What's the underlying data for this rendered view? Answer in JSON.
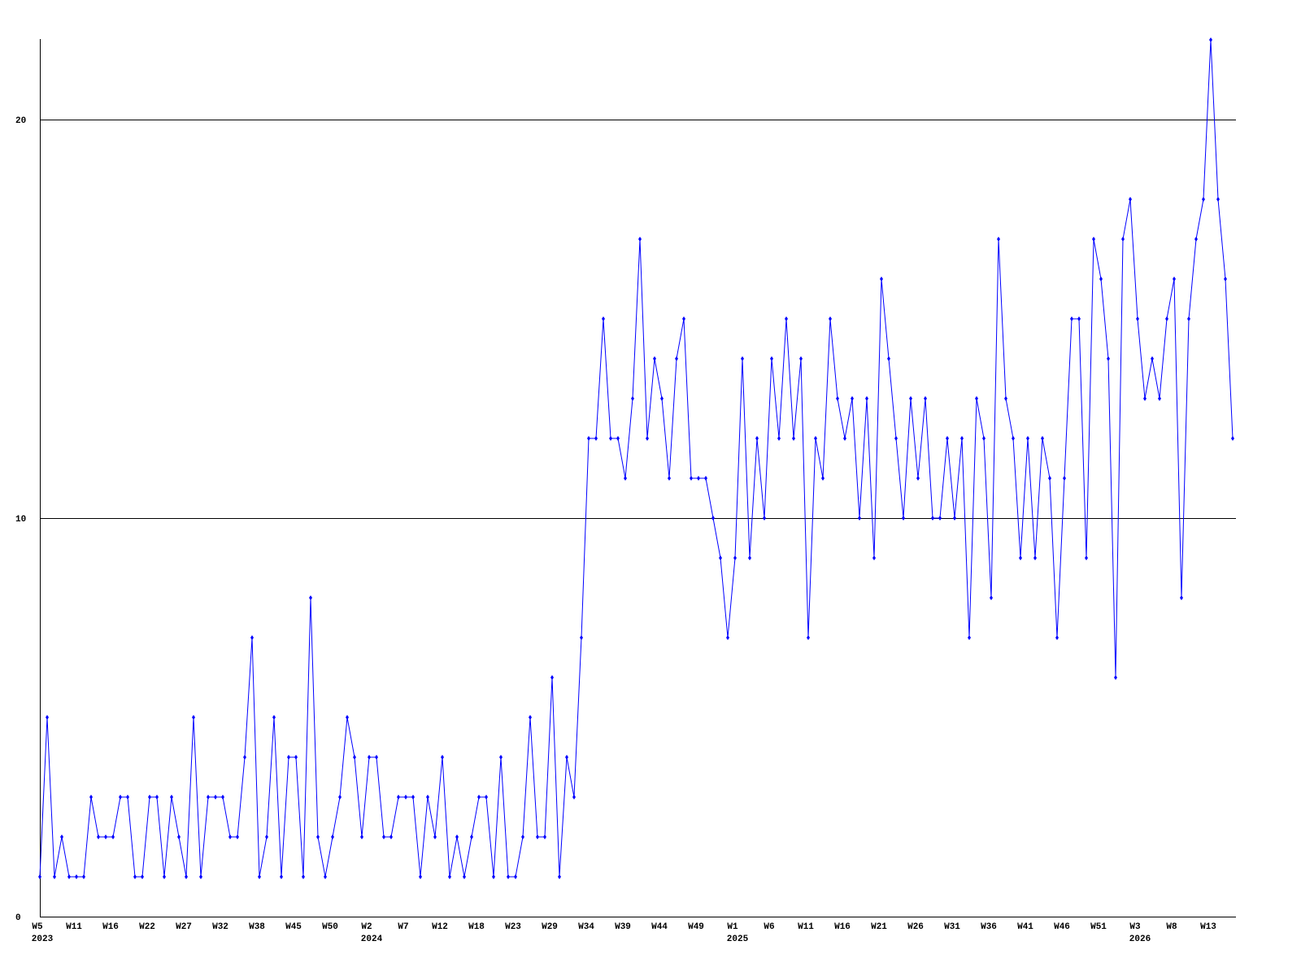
{
  "chart_data": {
    "type": "line",
    "title": "",
    "xlabel": "",
    "ylabel": "",
    "ylim": [
      0,
      22
    ],
    "y_ticks": [
      0,
      10,
      20
    ],
    "grid": "horizontal lines at y ticks",
    "line_color": "#0000ff",
    "x_tick_labels": [
      "W5",
      "W11",
      "W16",
      "W22",
      "W27",
      "W32",
      "W38",
      "W45",
      "W50",
      "W2",
      "W7",
      "W12",
      "W18",
      "W23",
      "W29",
      "W34",
      "W39",
      "W44",
      "W49",
      "W1",
      "W6",
      "W11",
      "W16",
      "W21",
      "W26",
      "W31",
      "W36",
      "W41",
      "W46",
      "W51",
      "W3",
      "W8",
      "W13"
    ],
    "year_labels": [
      {
        "label": "2023",
        "at_tick": 0
      },
      {
        "label": "2024",
        "at_tick": 9
      },
      {
        "label": "2025",
        "at_tick": 19
      },
      {
        "label": "2026",
        "at_tick": 30
      }
    ],
    "series": [
      {
        "values": [
          1,
          5,
          1,
          2,
          1,
          1,
          1,
          3,
          2,
          2,
          2,
          3,
          3,
          1,
          1,
          3,
          3,
          1,
          3,
          2,
          1,
          5,
          1,
          3,
          3,
          3,
          2,
          2,
          4,
          7,
          1,
          2,
          5,
          1,
          4,
          4,
          1,
          8,
          2,
          1,
          2,
          3,
          5,
          4,
          2,
          4,
          4,
          2,
          2,
          3,
          3,
          3,
          1,
          3,
          2,
          4,
          1,
          2,
          1,
          2,
          3,
          3,
          1,
          4,
          1,
          1,
          2,
          5,
          2,
          2,
          6,
          1,
          4,
          3,
          7,
          12,
          12,
          15,
          12,
          12,
          11,
          13,
          17,
          12,
          14,
          13,
          11,
          14,
          15,
          11,
          11,
          11,
          10,
          9,
          7,
          9,
          14,
          9,
          12,
          10,
          14,
          12,
          15,
          12,
          14,
          7,
          12,
          11,
          15,
          13,
          12,
          13,
          10,
          13,
          9,
          16,
          14,
          12,
          10,
          13,
          11,
          13,
          10,
          10,
          12,
          10,
          12,
          7,
          13,
          12,
          8,
          17,
          13,
          12,
          9,
          12,
          9,
          12,
          11,
          7,
          11,
          15,
          15,
          9,
          17,
          16,
          14,
          6,
          17,
          18,
          15,
          13,
          14,
          13,
          15,
          16,
          8,
          15,
          17,
          18,
          22,
          18,
          16,
          12
        ]
      }
    ]
  }
}
